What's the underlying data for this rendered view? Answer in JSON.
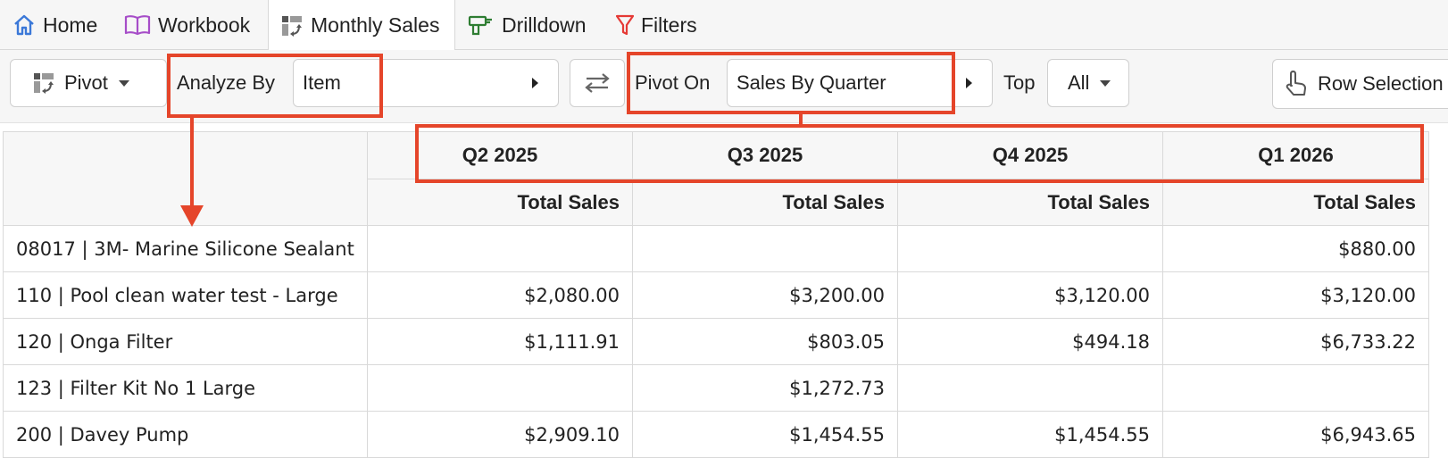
{
  "tabs": [
    {
      "label": "Home",
      "icon": "home-icon"
    },
    {
      "label": "Workbook",
      "icon": "book-icon"
    },
    {
      "label": "Monthly Sales",
      "icon": "pivot-icon",
      "active": true
    },
    {
      "label": "Drilldown",
      "icon": "drill-icon"
    },
    {
      "label": "Filters",
      "icon": "filter-icon"
    }
  ],
  "toolbar": {
    "pivot_label": "Pivot",
    "analyze_by_label": "Analyze By",
    "analyze_by_value": "Item",
    "pivot_on_label": "Pivot On",
    "pivot_on_value": "Sales By Quarter",
    "top_label": "Top",
    "top_value": "All",
    "row_selection_label": "Row Selection"
  },
  "table": {
    "quarters": [
      "Q2 2025",
      "Q3 2025",
      "Q4 2025",
      "Q1 2026"
    ],
    "measure": "Total Sales",
    "rows": [
      {
        "item": "08017 | 3M- Marine Silicone Sealant",
        "values": [
          "",
          "",
          "",
          "$880.00"
        ]
      },
      {
        "item": "110 | Pool clean water test - Large",
        "values": [
          "$2,080.00",
          "$3,200.00",
          "$3,120.00",
          "$3,120.00"
        ]
      },
      {
        "item": "120 | Onga Filter",
        "values": [
          "$1,111.91",
          "$803.05",
          "$494.18",
          "$6,733.22"
        ]
      },
      {
        "item": "123 | Filter Kit No 1 Large",
        "values": [
          "",
          "$1,272.73",
          "",
          ""
        ]
      },
      {
        "item": "200 | Davey Pump",
        "values": [
          "$2,909.10",
          "$1,454.55",
          "$1,454.55",
          "$6,943.65"
        ]
      }
    ]
  },
  "colors": {
    "highlight": "#e5452a",
    "home_icon": "#3b78d8",
    "book_icon": "#a64dc8",
    "drill_icon": "#2e7d32",
    "filter_icon": "#e53935"
  }
}
